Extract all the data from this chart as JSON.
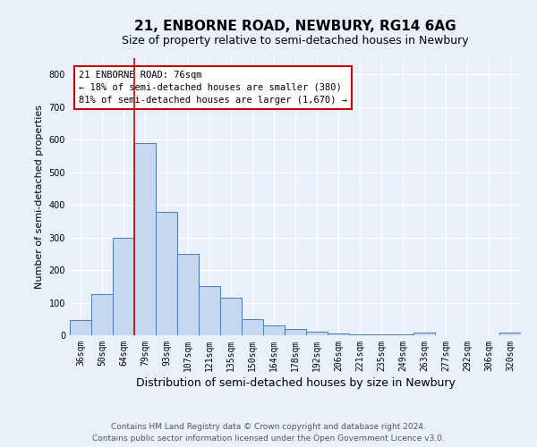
{
  "title": "21, ENBORNE ROAD, NEWBURY, RG14 6AG",
  "subtitle": "Size of property relative to semi-detached houses in Newbury",
  "xlabel": "Distribution of semi-detached houses by size in Newbury",
  "ylabel": "Number of semi-detached properties",
  "footer_line1": "Contains HM Land Registry data © Crown copyright and database right 2024.",
  "footer_line2": "Contains public sector information licensed under the Open Government Licence v3.0.",
  "annotation_title": "21 ENBORNE ROAD: 76sqm",
  "annotation_line1": "← 18% of semi-detached houses are smaller (380)",
  "annotation_line2": "81% of semi-detached houses are larger (1,670) →",
  "categories": [
    "36sqm",
    "50sqm",
    "64sqm",
    "79sqm",
    "93sqm",
    "107sqm",
    "121sqm",
    "135sqm",
    "150sqm",
    "164sqm",
    "178sqm",
    "192sqm",
    "206sqm",
    "221sqm",
    "235sqm",
    "249sqm",
    "263sqm",
    "277sqm",
    "292sqm",
    "306sqm",
    "320sqm"
  ],
  "values": [
    47,
    125,
    300,
    590,
    378,
    250,
    150,
    115,
    50,
    30,
    20,
    12,
    5,
    3,
    2,
    2,
    8,
    1,
    1,
    1,
    8
  ],
  "bar_color": "#c5d8f0",
  "bar_edge_color": "#4d7ab5",
  "red_line_x": 2.5,
  "ylim": [
    0,
    850
  ],
  "background_color": "#eaf0fb",
  "plot_bg_color": "#eaf0fb",
  "grid_color": "#ffffff",
  "annotation_box_color": "#ffffff",
  "annotation_border_color": "#cc0000",
  "title_fontsize": 11,
  "subtitle_fontsize": 9,
  "ylabel_fontsize": 8,
  "xlabel_fontsize": 9,
  "tick_fontsize": 7,
  "annotation_fontsize": 7.5,
  "footer_fontsize": 6.5
}
